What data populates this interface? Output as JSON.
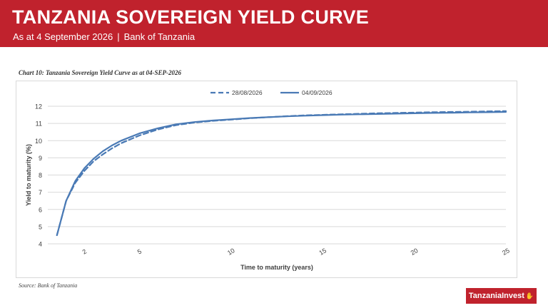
{
  "banner": {
    "title": "TANZANIA SOVEREIGN YIELD CURVE",
    "date_text": "As at 4 September 2026",
    "separator": "|",
    "source_text": "Bank of Tanzania"
  },
  "chart_caption": "Chart 10: Tanzania Sovereign Yield Curve as at 04-SEP-2026",
  "source_note": "Source: Bank of Tanzania",
  "logo": {
    "text": "TanzaniaInvest",
    "mark_icon": "hand-mark-icon"
  },
  "chart_data": {
    "type": "line",
    "xlabel": "Time to maturity (years)",
    "ylabel": "Yield to maturity (%)",
    "xlim": [
      0,
      25
    ],
    "ylim": [
      4,
      12
    ],
    "x_ticks": [
      2,
      5,
      10,
      15,
      20,
      25
    ],
    "y_ticks": [
      4,
      5,
      6,
      7,
      8,
      9,
      10,
      11,
      12
    ],
    "grid": "horizontal",
    "legend_position": "top-center",
    "series": [
      {
        "name": "28/08/2026",
        "style": "dashed",
        "color": "#4a7ab5",
        "x": [
          0.5,
          1,
          1.5,
          2,
          2.5,
          3,
          3.5,
          4,
          5,
          6,
          7,
          8,
          9,
          10,
          11,
          12,
          13,
          14,
          15,
          16,
          17,
          18,
          19,
          20,
          21,
          22,
          23,
          24,
          25
        ],
        "y": [
          4.5,
          6.5,
          7.55,
          8.25,
          8.8,
          9.2,
          9.55,
          9.85,
          10.3,
          10.65,
          10.9,
          11.05,
          11.15,
          11.22,
          11.3,
          11.36,
          11.42,
          11.47,
          11.5,
          11.53,
          11.56,
          11.59,
          11.61,
          11.63,
          11.65,
          11.67,
          11.68,
          11.7,
          11.72
        ]
      },
      {
        "name": "04/09/2026",
        "style": "solid",
        "color": "#4a7ab5",
        "x": [
          0.5,
          1,
          1.5,
          2,
          2.5,
          3,
          3.5,
          4,
          5,
          6,
          7,
          8,
          9,
          10,
          11,
          12,
          13,
          14,
          15,
          16,
          17,
          18,
          19,
          20,
          21,
          22,
          23,
          24,
          25
        ],
        "y": [
          4.5,
          6.5,
          7.65,
          8.4,
          8.95,
          9.38,
          9.72,
          10.0,
          10.42,
          10.72,
          10.95,
          11.08,
          11.17,
          11.24,
          11.31,
          11.36,
          11.41,
          11.45,
          11.48,
          11.51,
          11.53,
          11.55,
          11.57,
          11.59,
          11.61,
          11.62,
          11.64,
          11.65,
          11.67
        ]
      }
    ]
  }
}
